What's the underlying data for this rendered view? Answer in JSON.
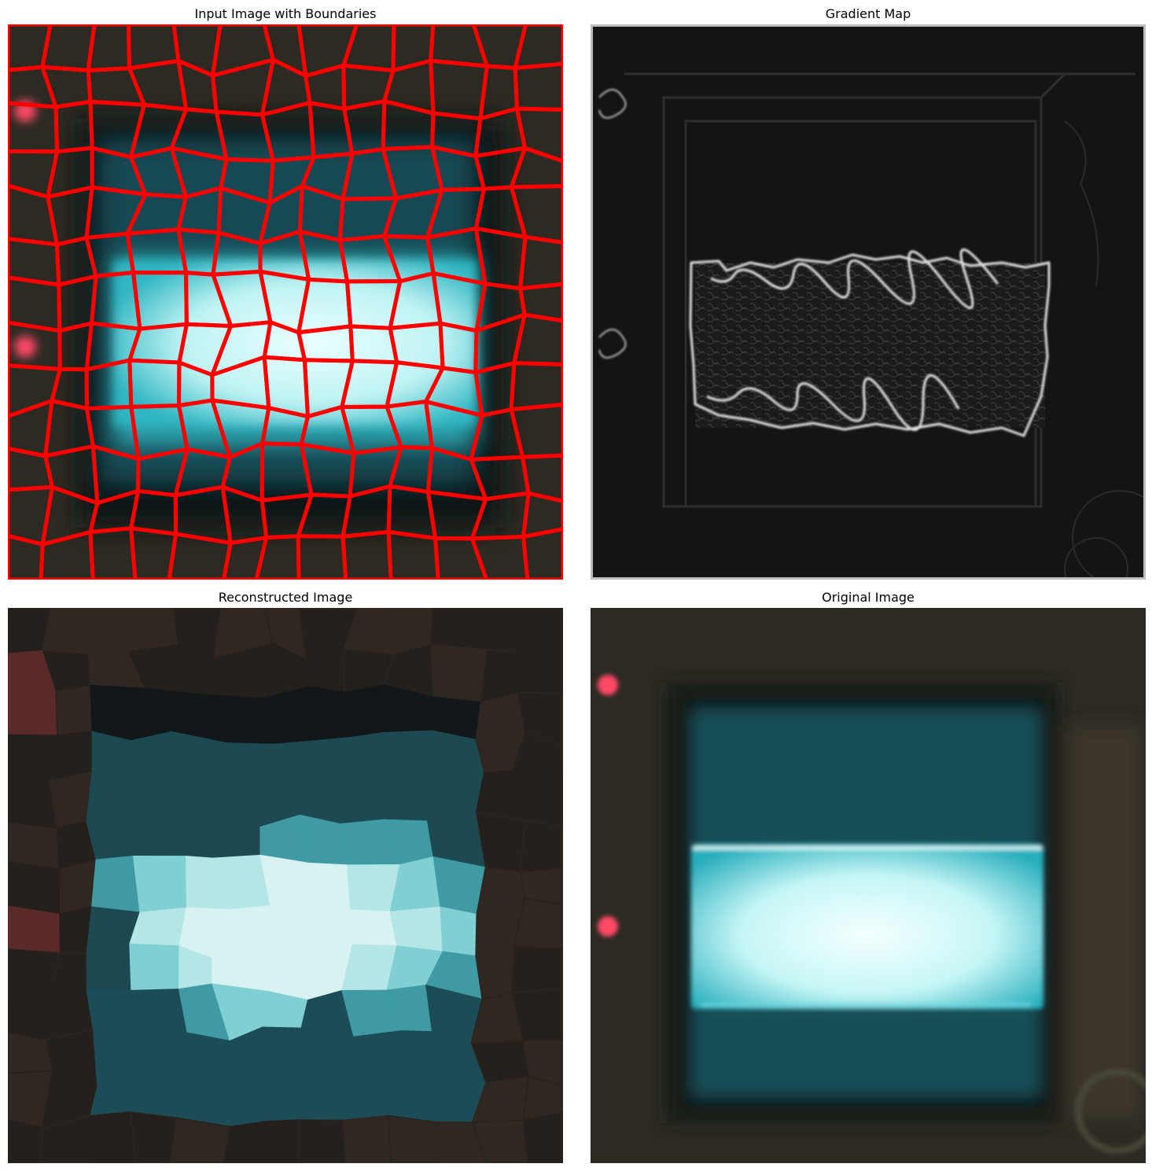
{
  "figure": {
    "panels": [
      {
        "id": "input",
        "title": "Input Image with Boundaries"
      },
      {
        "id": "gradient",
        "title": "Gradient Map"
      },
      {
        "id": "reconstructed",
        "title": "Reconstructed Image"
      },
      {
        "id": "original",
        "title": "Original Image"
      }
    ]
  },
  "colors": {
    "boundary": "#ff0000",
    "screen_teal": "#1f5c66",
    "trace_cyan": "#bff3f3",
    "bezel_dark": "#2a2620",
    "led_red": "#ff4a66",
    "gradient_bg": "#141414",
    "gradient_edge": "#e6e6e6"
  }
}
